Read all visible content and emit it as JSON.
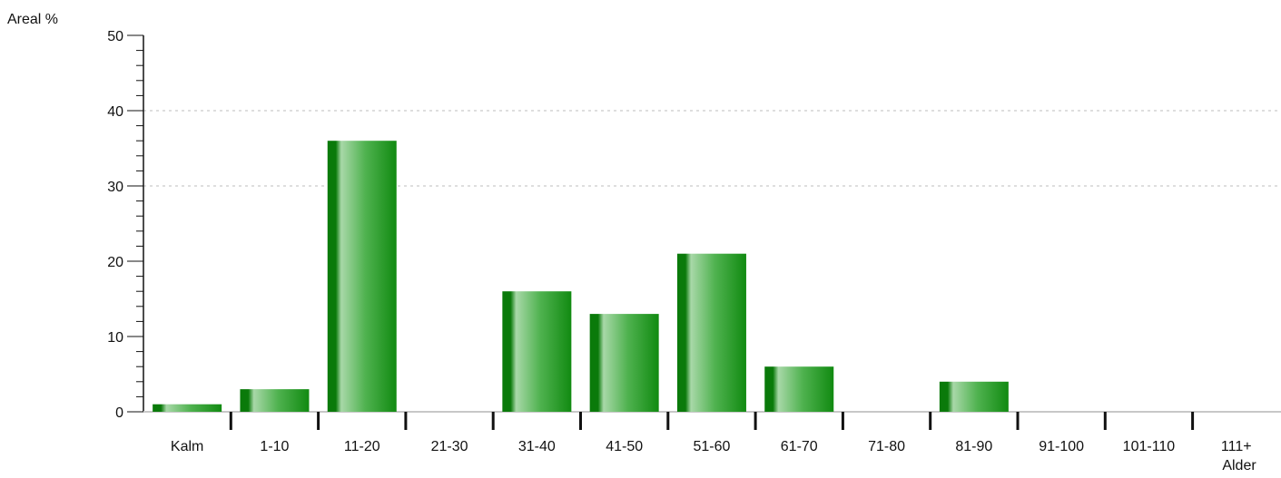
{
  "chart_data": {
    "type": "bar",
    "ylabel": "Areal %",
    "xlabel": "Alder",
    "categories": [
      "Kalm",
      "1-10",
      "11-20",
      "21-30",
      "31-40",
      "41-50",
      "51-60",
      "61-70",
      "71-80",
      "81-90",
      "91-100",
      "101-110",
      "111+"
    ],
    "values": [
      1,
      3,
      36,
      0,
      16,
      13,
      21,
      6,
      0,
      4,
      0,
      0,
      0
    ],
    "ylim": [
      0,
      50
    ],
    "yticks": [
      0,
      10,
      20,
      30,
      40,
      50
    ],
    "grid": "horizontal dotted at 30 and 40",
    "legend": "none",
    "colors": {
      "bar_dark": "#0a7a0a",
      "bar_mid": "#1f9a1f",
      "bar_light": "#a8d8a8",
      "axis": "#111111",
      "grid": "#bdbdbd"
    }
  }
}
